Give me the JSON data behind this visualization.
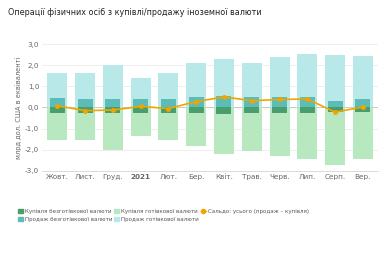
{
  "title": "Операції фізичних осіб з купівлі/продажу іноземної валюти",
  "ylabel": "млрд дол. США в еквіваленті",
  "categories": [
    "Жовт.",
    "Лист.",
    "Груд.",
    "2021",
    "Лют.",
    "Бер.",
    "Квіт.",
    "Трав.",
    "Черв.",
    "Лип.",
    "Серп.",
    "Вер."
  ],
  "ylim": [
    -3.0,
    3.0
  ],
  "yticks": [
    -3.0,
    -2.0,
    -1.0,
    0.0,
    1.0,
    2.0,
    3.0
  ],
  "buy_cashless": [
    -0.25,
    -0.25,
    -0.28,
    -0.25,
    -0.25,
    -0.28,
    -0.3,
    -0.28,
    -0.28,
    -0.28,
    -0.2,
    -0.22
  ],
  "sell_cashless": [
    0.45,
    0.4,
    0.42,
    0.38,
    0.42,
    0.48,
    0.52,
    0.48,
    0.5,
    0.5,
    0.32,
    0.42
  ],
  "buy_cash": [
    -1.55,
    -1.55,
    -2.0,
    -1.35,
    -1.55,
    -1.8,
    -2.2,
    -2.05,
    -2.3,
    -2.45,
    -2.7,
    -2.45
  ],
  "sell_cash": [
    1.62,
    1.62,
    2.03,
    1.4,
    1.62,
    2.1,
    2.28,
    2.1,
    2.38,
    2.52,
    2.5,
    2.45
  ],
  "saldo": [
    0.08,
    -0.15,
    -0.12,
    0.05,
    -0.05,
    0.28,
    0.5,
    0.32,
    0.38,
    0.4,
    -0.22,
    0.02
  ],
  "color_buy_cashless": "#4a9e6e",
  "color_sell_cashless": "#5bbcb8",
  "color_buy_cash": "#b8e8c0",
  "color_sell_cash": "#b8e8e8",
  "color_saldo_line": "#f0a500",
  "color_saldo_marker": "#f0a500",
  "background_color": "#ffffff",
  "grid_color": "#e8e8e8",
  "legend_labels": [
    "Купівля безготівкової валюти",
    "Продаж безготівкової валюти",
    "Купівля готівкової валюти",
    "Продаж готівкової валюти",
    "Сальдо: усього (продаж – купівля)"
  ]
}
